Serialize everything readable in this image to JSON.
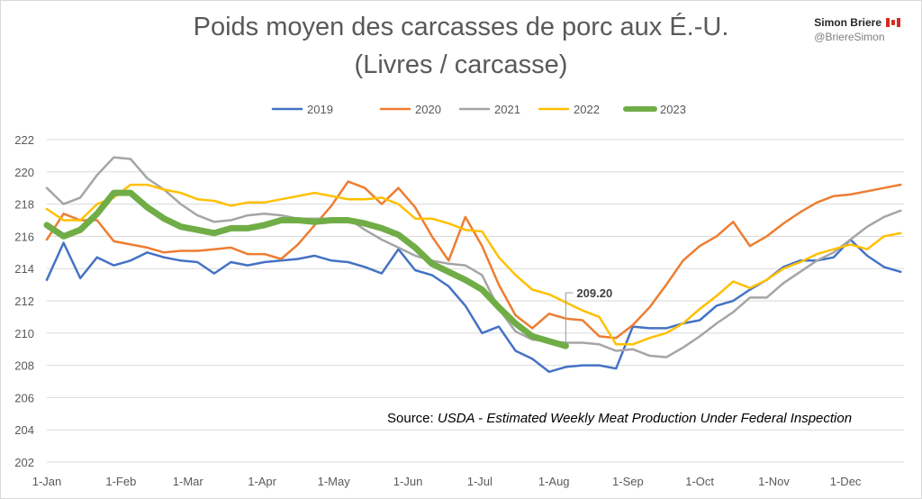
{
  "header": {
    "title": "Poids moyen des carcasses de porc aux É.-U.",
    "subtitle": "(Livres / carcasse)",
    "author_name": "Simon Briere",
    "author_handle": "@BriereSimon",
    "flag_icon": "canada-flag-icon"
  },
  "source": {
    "prefix": "Source: ",
    "text": "USDA - Estimated Weekly Meat Production Under Federal Inspection"
  },
  "annotation": {
    "label": "209.20"
  },
  "chart_data": {
    "type": "line",
    "title": "Poids moyen des carcasses de porc aux É.-U.",
    "subtitle": "(Livres / carcasse)",
    "x_ticks": [
      "1-Jan",
      "1-Feb",
      "1-Mar",
      "1-Apr",
      "1-May",
      "1-Jun",
      "1-Jul",
      "1-Aug",
      "1-Sep",
      "1-Oct",
      "1-Nov",
      "1-Dec"
    ],
    "x_tick_weeks": [
      0,
      4.43,
      8.43,
      12.86,
      17.14,
      21.57,
      25.86,
      30.29,
      34.71,
      39,
      43.43,
      47.71
    ],
    "ylim": [
      202,
      222
    ],
    "y_ticks": [
      202,
      204,
      206,
      208,
      210,
      212,
      214,
      216,
      218,
      220,
      222
    ],
    "grid": "horizontal",
    "legend_position": "top",
    "series": [
      {
        "name": "2019",
        "color": "#4472C4",
        "width": 2.5,
        "values": [
          213.3,
          215.6,
          213.4,
          214.7,
          214.2,
          214.5,
          215.0,
          214.7,
          214.5,
          214.4,
          213.7,
          214.4,
          214.2,
          214.4,
          214.5,
          214.6,
          214.8,
          214.5,
          214.4,
          214.1,
          213.7,
          215.2,
          213.9,
          213.6,
          212.9,
          211.7,
          210.0,
          210.4,
          208.9,
          208.4,
          207.6,
          207.9,
          208.0,
          208.0,
          207.8,
          210.4,
          210.3,
          210.3,
          210.6,
          210.8,
          211.7,
          212.0,
          212.7,
          213.3,
          214.1,
          214.5,
          214.5,
          214.7,
          215.8,
          214.8,
          214.1,
          213.8
        ]
      },
      {
        "name": "2020",
        "color": "#ED7D31",
        "width": 2.5,
        "values": [
          215.8,
          217.4,
          217.0,
          217.0,
          215.7,
          215.5,
          215.3,
          215.0,
          215.1,
          215.1,
          215.2,
          215.3,
          214.9,
          214.9,
          214.6,
          215.5,
          216.7,
          217.9,
          219.4,
          219.0,
          218.0,
          219.0,
          217.8,
          216.0,
          214.5,
          217.2,
          215.4,
          213.0,
          211.1,
          210.3,
          211.2,
          210.9,
          210.8,
          209.8,
          209.7,
          210.5,
          211.6,
          213.0,
          214.5,
          215.4,
          216.0,
          216.9,
          215.4,
          216.0,
          216.8,
          217.5,
          218.1,
          218.5,
          218.6,
          218.8,
          219.0,
          219.2
        ]
      },
      {
        "name": "2021",
        "color": "#A5A5A5",
        "width": 2.5,
        "values": [
          219.0,
          218.0,
          218.4,
          219.8,
          220.9,
          220.8,
          219.6,
          218.9,
          218.0,
          217.3,
          216.9,
          217.0,
          217.3,
          217.4,
          217.3,
          217.1,
          217.1,
          217.1,
          217.1,
          216.4,
          215.8,
          215.3,
          214.8,
          214.5,
          214.3,
          214.2,
          213.6,
          211.5,
          210.1,
          209.6,
          209.5,
          209.4,
          209.4,
          209.3,
          208.9,
          209.0,
          208.6,
          208.5,
          209.1,
          209.8,
          210.6,
          211.3,
          212.2,
          212.2,
          213.1,
          213.8,
          214.5,
          215.0,
          215.8,
          216.6,
          217.2,
          217.6
        ]
      },
      {
        "name": "2022",
        "color": "#FFC000",
        "width": 2.5,
        "values": [
          217.7,
          217.0,
          217.0,
          218.0,
          218.4,
          219.2,
          219.2,
          218.9,
          218.7,
          218.3,
          218.2,
          217.9,
          218.1,
          218.1,
          218.3,
          218.5,
          218.7,
          218.5,
          218.3,
          218.3,
          218.4,
          218.0,
          217.1,
          217.1,
          216.8,
          216.4,
          216.3,
          214.7,
          213.6,
          212.7,
          212.4,
          211.9,
          211.4,
          211.0,
          209.3,
          209.3,
          209.7,
          210.0,
          210.6,
          211.5,
          212.3,
          213.2,
          212.8,
          213.3,
          214.0,
          214.4,
          214.9,
          215.2,
          215.5,
          215.2,
          216.0,
          216.2
        ]
      },
      {
        "name": "2023",
        "color": "#70AD47",
        "width": 7,
        "values": [
          216.7,
          216.0,
          216.4,
          217.4,
          218.7,
          218.7,
          217.8,
          217.1,
          216.6,
          216.4,
          216.2,
          216.5,
          216.5,
          216.7,
          217.0,
          217.0,
          216.9,
          217.0,
          217.0,
          216.8,
          216.5,
          216.1,
          215.3,
          214.3,
          213.8,
          213.3,
          212.7,
          211.6,
          210.6,
          209.8,
          209.5,
          209.2
        ]
      }
    ]
  }
}
